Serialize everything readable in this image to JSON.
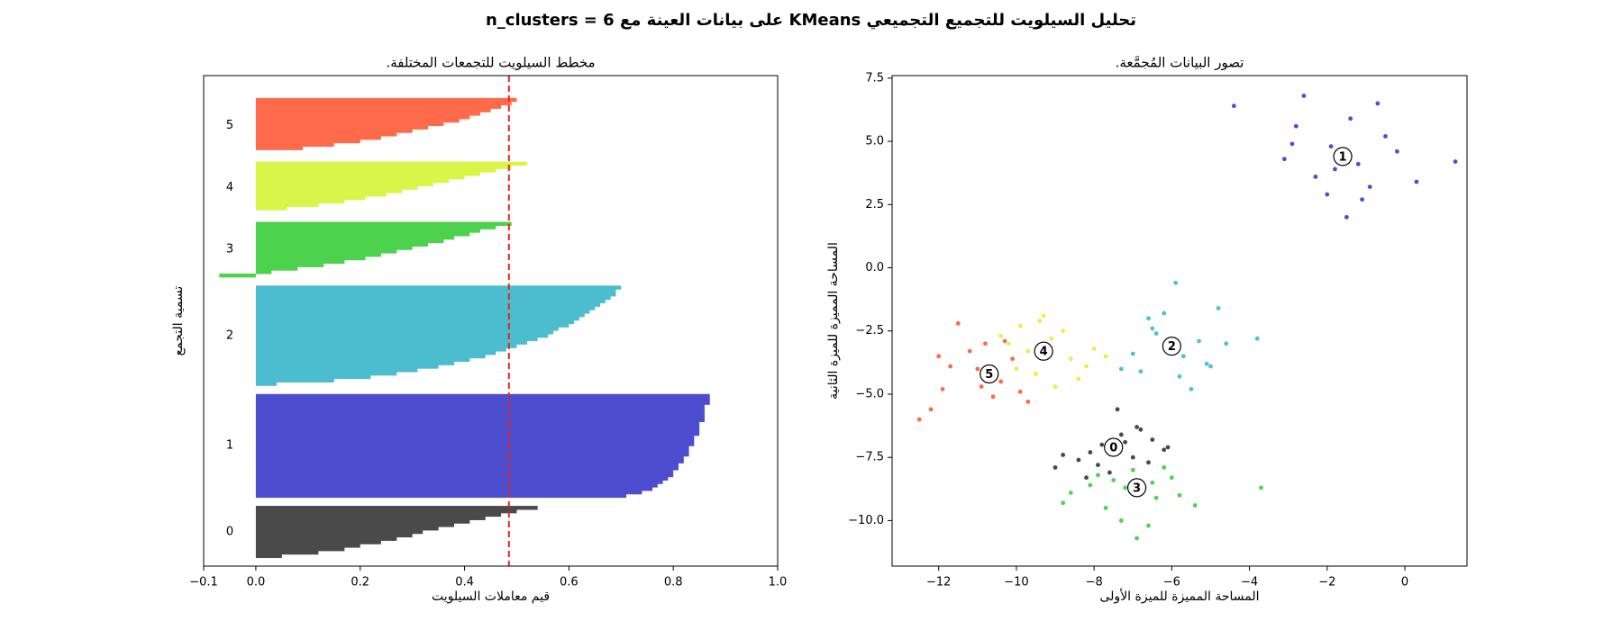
{
  "title": "تحليل السيلويت للتجميع التجميعي KMeans على بيانات العينة مع n_clusters = 6",
  "chart_data": [
    {
      "type": "silhouette",
      "title": "مخطط السيلويت للتجمعات المختلفة.",
      "xlabel": "قيم معاملات السيلويت",
      "ylabel": "تسمية التجمع",
      "xlim": [
        -0.1,
        1.0
      ],
      "xticks": [
        {
          "value": -0.1,
          "label": "−0.1"
        },
        {
          "value": 0,
          "label": "0.0"
        },
        0.2,
        0.4,
        0.6,
        0.8,
        {
          "value": 1.0,
          "label": "1.0"
        }
      ],
      "average_line": 0.485,
      "average_line_color": "#e8211b",
      "series": [
        {
          "name": "0",
          "color": "#4a4a4a",
          "values": [
            0.05,
            0.12,
            0.17,
            0.2,
            0.24,
            0.27,
            0.3,
            0.32,
            0.35,
            0.38,
            0.41,
            0.44,
            0.47,
            0.5,
            0.54
          ]
        },
        {
          "name": "1",
          "color": "#4d4dcf",
          "values": [
            0.71,
            0.74,
            0.76,
            0.77,
            0.78,
            0.79,
            0.8,
            0.8,
            0.81,
            0.81,
            0.82,
            0.82,
            0.83,
            0.83,
            0.83,
            0.84,
            0.84,
            0.84,
            0.85,
            0.85,
            0.85,
            0.85,
            0.86,
            0.86,
            0.86,
            0.86,
            0.86,
            0.87,
            0.87,
            0.87
          ]
        },
        {
          "name": "2",
          "color": "#4cbdce",
          "values": [
            0.04,
            0.15,
            0.22,
            0.27,
            0.31,
            0.35,
            0.38,
            0.41,
            0.44,
            0.46,
            0.48,
            0.5,
            0.52,
            0.54,
            0.56,
            0.57,
            0.58,
            0.6,
            0.61,
            0.62,
            0.63,
            0.64,
            0.65,
            0.66,
            0.67,
            0.68,
            0.69,
            0.69,
            0.7
          ]
        },
        {
          "name": "3",
          "color": "#4cd24c",
          "values": [
            -0.07,
            0.03,
            0.08,
            0.13,
            0.17,
            0.21,
            0.24,
            0.27,
            0.3,
            0.33,
            0.36,
            0.38,
            0.41,
            0.43,
            0.46,
            0.49
          ]
        },
        {
          "name": "4",
          "color": "#d9f549",
          "values": [
            0.0,
            0.06,
            0.12,
            0.17,
            0.21,
            0.25,
            0.28,
            0.31,
            0.34,
            0.37,
            0.4,
            0.43,
            0.46,
            0.49,
            0.52
          ]
        },
        {
          "name": "5",
          "color": "#ff6a4a",
          "values": [
            0.0,
            0.09,
            0.15,
            0.2,
            0.24,
            0.27,
            0.3,
            0.33,
            0.36,
            0.39,
            0.41,
            0.43,
            0.45,
            0.47,
            0.49,
            0.5
          ]
        }
      ]
    },
    {
      "type": "scatter",
      "title": "تصور البيانات المُجمَّعة.",
      "xlabel": "المساحة المميزة للميزة الأولى",
      "ylabel": "المساحة المميزة للميزة الثانية",
      "xlim": [
        -13.2,
        1.6
      ],
      "ylim": [
        -11.8,
        7.6
      ],
      "xticks": [
        {
          "value": -12,
          "label": "−12"
        },
        {
          "value": -10,
          "label": "−10"
        },
        {
          "value": -8,
          "label": "−8"
        },
        {
          "value": -6,
          "label": "−6"
        },
        {
          "value": -4,
          "label": "−4"
        },
        {
          "value": -2,
          "label": "−2"
        },
        0
      ],
      "yticks": [
        {
          "value": -10,
          "label": "−10.0"
        },
        {
          "value": -7.5,
          "label": "−7.5"
        },
        {
          "value": -5,
          "label": "−5.0"
        },
        {
          "value": -2.5,
          "label": "−2.5"
        },
        {
          "value": 0,
          "label": "0.0"
        },
        2.5,
        {
          "value": 5,
          "label": "5.0"
        },
        7.5
      ],
      "series": [
        {
          "name": "0",
          "color": "#1a1a1a",
          "center": [
            -7.5,
            -7.1
          ],
          "x": [
            -7.3,
            -8.1,
            -6.8,
            -7.9,
            -7.0,
            -6.5,
            -8.4,
            -7.6,
            -6.2,
            -8.8,
            -7.2,
            -6.9,
            -7.8,
            -8.2,
            -6.6,
            -7.4,
            -9.0,
            -6.1
          ],
          "y": [
            -6.6,
            -7.3,
            -6.4,
            -7.8,
            -7.5,
            -6.8,
            -7.6,
            -8.1,
            -7.2,
            -7.4,
            -6.9,
            -6.3,
            -7.0,
            -8.3,
            -7.7,
            -5.6,
            -7.9,
            -7.1
          ]
        },
        {
          "name": "1",
          "color": "#2222c4",
          "center": [
            -1.6,
            4.4
          ],
          "x": [
            -2.8,
            -1.9,
            -1.2,
            -0.5,
            -2.3,
            -1.6,
            -0.9,
            -3.1,
            -2.0,
            -1.4,
            -0.2,
            0.3,
            -2.6,
            -1.1,
            -1.8,
            -0.7,
            -4.4,
            1.3,
            -2.9,
            -1.5
          ],
          "y": [
            5.6,
            4.8,
            4.1,
            5.2,
            3.6,
            4.4,
            3.2,
            4.3,
            2.9,
            5.9,
            4.6,
            3.4,
            6.8,
            2.7,
            3.9,
            6.5,
            6.4,
            4.2,
            4.9,
            2.0
          ]
        },
        {
          "name": "2",
          "color": "#22b3c4",
          "center": [
            -6.0,
            -3.1
          ],
          "x": [
            -6.5,
            -5.7,
            -6.2,
            -5.3,
            -7.0,
            -6.8,
            -5.9,
            -5.1,
            -6.4,
            -4.6,
            -7.3,
            -5.5,
            -6.1,
            -4.8,
            -6.6,
            -3.8,
            -5.0,
            -5.8
          ],
          "y": [
            -2.4,
            -3.5,
            -1.8,
            -2.9,
            -3.4,
            -4.1,
            -0.6,
            -3.8,
            -2.6,
            -3.0,
            -4.0,
            -4.8,
            -3.3,
            -1.6,
            -2.0,
            -2.8,
            -3.9,
            -4.3
          ]
        },
        {
          "name": "3",
          "color": "#22c922",
          "center": [
            -6.9,
            -8.7
          ],
          "x": [
            -7.5,
            -6.4,
            -7.0,
            -8.1,
            -6.0,
            -7.7,
            -6.6,
            -5.4,
            -8.6,
            -7.2,
            -6.2,
            -7.9,
            -5.8,
            -6.9,
            -8.8,
            -3.7,
            -7.3,
            -6.5
          ],
          "y": [
            -8.4,
            -9.1,
            -8.0,
            -8.6,
            -8.3,
            -9.5,
            -10.2,
            -9.4,
            -8.9,
            -8.7,
            -7.9,
            -8.2,
            -9.0,
            -10.7,
            -9.3,
            -8.7,
            -10.0,
            -8.5
          ]
        },
        {
          "name": "4",
          "color": "#e6e822",
          "center": [
            -9.3,
            -3.3
          ],
          "x": [
            -9.9,
            -9.1,
            -8.6,
            -10.2,
            -9.5,
            -8.8,
            -9.7,
            -8.2,
            -9.3,
            -10.4,
            -8.0,
            -9.0,
            -7.7,
            -10.0,
            -9.4,
            -8.4
          ],
          "y": [
            -2.3,
            -2.8,
            -3.6,
            -3.0,
            -4.2,
            -2.5,
            -3.3,
            -3.9,
            -1.9,
            -2.7,
            -3.2,
            -4.7,
            -3.5,
            -4.0,
            -2.1,
            -4.4
          ]
        },
        {
          "name": "5",
          "color": "#ff4422",
          "center": [
            -10.7,
            -4.2
          ],
          "x": [
            -11.5,
            -10.8,
            -10.1,
            -11.9,
            -10.4,
            -11.2,
            -10.6,
            -12.2,
            -9.9,
            -11.0,
            -12.5,
            -10.3,
            -11.7,
            -10.9,
            -9.7,
            -12.0
          ],
          "y": [
            -2.2,
            -3.0,
            -3.6,
            -4.8,
            -4.5,
            -3.3,
            -5.1,
            -5.6,
            -4.9,
            -4.0,
            -6.0,
            -2.9,
            -3.9,
            -4.7,
            -5.3,
            -3.5
          ]
        }
      ]
    }
  ]
}
